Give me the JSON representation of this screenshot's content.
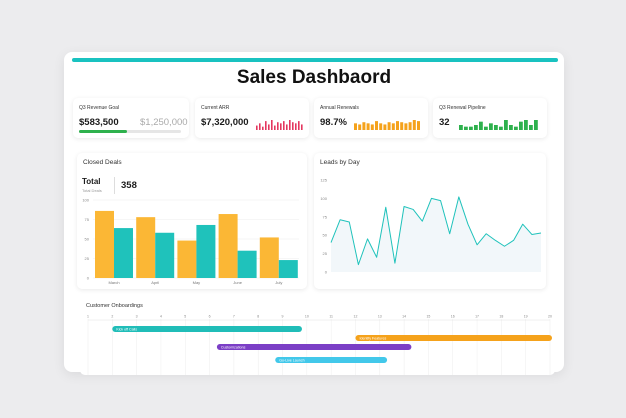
{
  "header": {
    "title": "Sales Dashbaord"
  },
  "kpis": {
    "revenue": {
      "label": "Q3 Revenue Goal",
      "value": "$583,500",
      "target": "$1,250,000",
      "progress": 0.467
    },
    "arr": {
      "label": "Current ARR",
      "value": "$7,320,000",
      "spark": [
        4,
        6,
        3,
        8,
        5,
        9,
        4,
        7,
        6,
        8,
        5,
        9,
        7,
        6,
        8,
        5
      ],
      "color": "#e4375f"
    },
    "renewals": {
      "label": "Annual Renewals",
      "value": "98.7%",
      "spark": [
        6,
        5,
        7,
        6,
        5,
        8,
        6,
        5,
        7,
        6,
        8,
        7,
        6,
        7,
        9,
        8
      ],
      "color": "#f5a21b"
    },
    "pipeline": {
      "label": "Q3 Renewal Pipeline",
      "value": "32",
      "spark": [
        3,
        2,
        2,
        3,
        5,
        2,
        4,
        3,
        2,
        6,
        3,
        2,
        5,
        6,
        3,
        6
      ],
      "color": "#2eb14d"
    }
  },
  "closed_deals": {
    "title": "Closed Deals",
    "total_label": "Total",
    "total_sub": "Total Deals",
    "total_value": "358"
  },
  "leads": {
    "title": "Leads by Day"
  },
  "gantt": {
    "title": "Customer Onboardings",
    "ticks": [
      "1",
      "2",
      "3",
      "4",
      "5",
      "6",
      "7",
      "8",
      "9",
      "10",
      "11",
      "12",
      "13",
      "14",
      "15",
      "16",
      "17",
      "18",
      "19",
      "20"
    ],
    "tasks": [
      {
        "label": "Kick off Calls",
        "start": 2,
        "end": 9.8,
        "color": "#20bdb8"
      },
      {
        "label": "Identify Features",
        "start": 12,
        "end": 20.5,
        "color": "#f5a21b"
      },
      {
        "label": "Customizations",
        "start": 6.3,
        "end": 14.3,
        "color": "#7b3fc6"
      },
      {
        "label": "Go-Live Launch",
        "start": 8.7,
        "end": 13.3,
        "color": "#42c8ea"
      }
    ]
  },
  "chart_data": [
    {
      "type": "bar",
      "categories": [
        "March",
        "April",
        "May",
        "June",
        "July"
      ],
      "series": [
        {
          "values": [
            86,
            78,
            48,
            82,
            52
          ],
          "color": "#fbb735"
        },
        {
          "values": [
            64,
            58,
            68,
            35,
            23
          ],
          "color": "#1fc2bb"
        }
      ],
      "ylim": [
        0,
        100
      ],
      "yticks": [
        "0",
        "25",
        "50",
        "75",
        "100"
      ],
      "grid": true
    },
    {
      "type": "line",
      "x": [
        1,
        2,
        3,
        4,
        5,
        6,
        7,
        8,
        9,
        10,
        11,
        12,
        13,
        14,
        15,
        16,
        17,
        18,
        19,
        20,
        21,
        22,
        23,
        24
      ],
      "values": [
        40,
        71,
        68,
        10,
        45,
        20,
        88,
        12,
        89,
        85,
        69,
        100,
        97,
        52,
        102,
        65,
        37,
        52,
        43,
        35,
        43,
        65,
        51,
        53
      ],
      "ylim": [
        0,
        125
      ],
      "yticks": [
        "0",
        "25",
        "50",
        "75",
        "100",
        "125"
      ],
      "color": "#1fc2bb",
      "fill": "#f2f7fa"
    }
  ]
}
